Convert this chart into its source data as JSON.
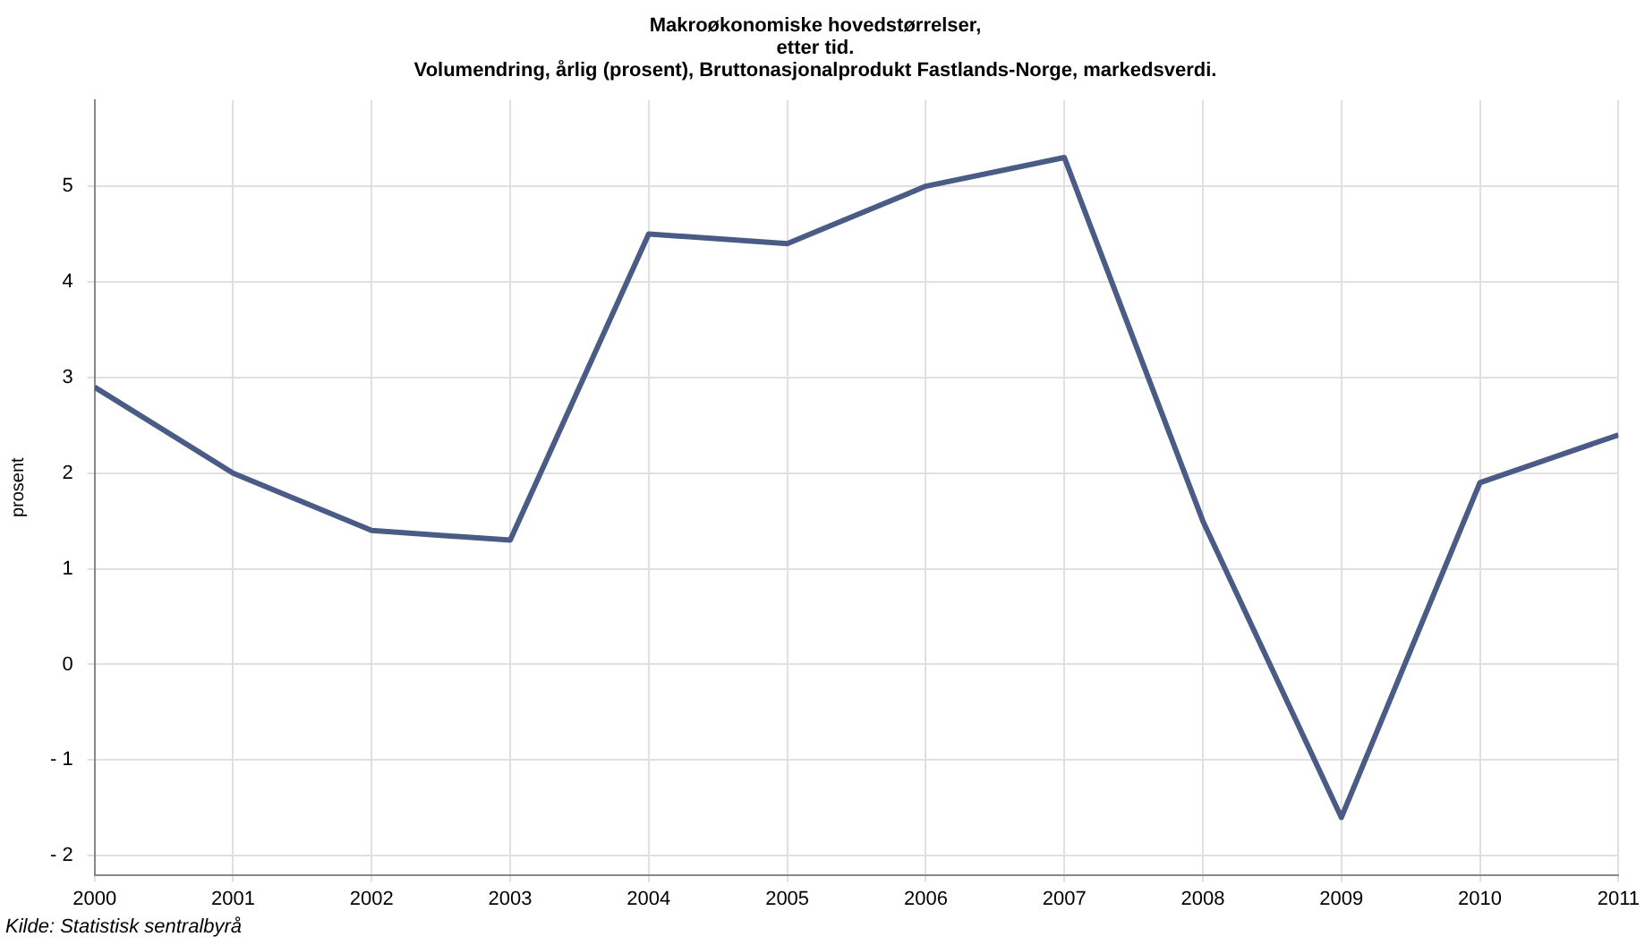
{
  "chart_data": {
    "type": "line",
    "title": "Makroøkonomiske hovedstørrelser,\netter tid.\nVolumendring, årlig (prosent), Bruttonasjonalprodukt Fastlands-Norge, markedsverdi.",
    "ylabel": "prosent",
    "annotations": [
      "Kilde: Statistisk sentralbyrå"
    ],
    "x": [
      2000,
      2001,
      2002,
      2003,
      2004,
      2005,
      2006,
      2007,
      2008,
      2009,
      2010,
      2011
    ],
    "series": [
      {
        "color": "#4a5c86",
        "values": [
          2.9,
          2.0,
          1.4,
          1.3,
          4.5,
          4.4,
          5.0,
          5.3,
          1.5,
          -1.6,
          1.9,
          2.4
        ]
      }
    ],
    "xlim": [
      2000,
      2011
    ],
    "xticks": [
      2000,
      2001,
      2002,
      2003,
      2004,
      2005,
      2006,
      2007,
      2008,
      2009,
      2010,
      2011
    ],
    "ylim": [
      -2.2,
      5.9
    ],
    "yticks": [
      {
        "value": -2,
        "label": "- 2"
      },
      {
        "value": -1,
        "label": "- 1"
      },
      0,
      1,
      2,
      3,
      4,
      5
    ],
    "grid": true,
    "legend": false,
    "marker": "none",
    "line_style": "solid"
  }
}
